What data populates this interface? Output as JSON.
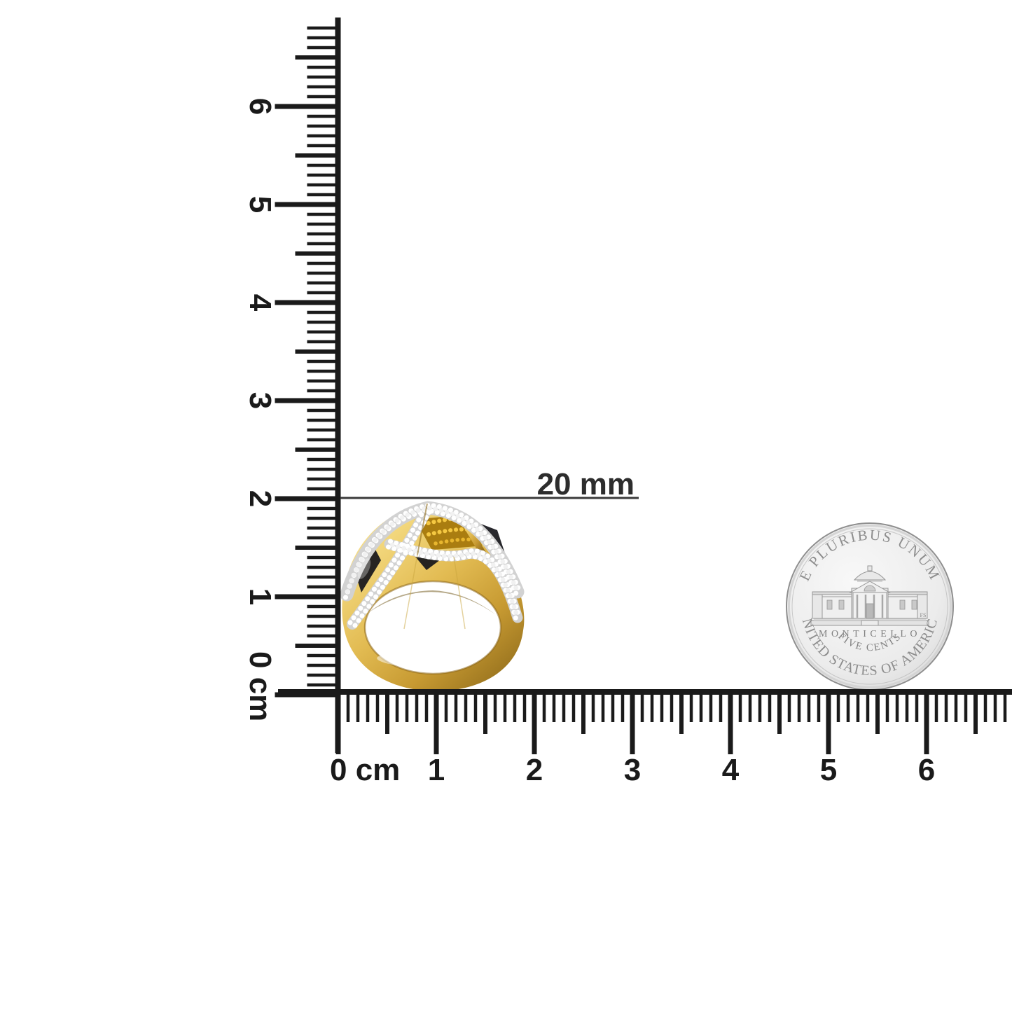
{
  "rulers": {
    "unit": "cm",
    "vertical_labels": [
      "0 cm",
      "1",
      "2",
      "3",
      "4",
      "5",
      "6"
    ],
    "horizontal_labels": [
      "0 cm",
      "1",
      "2",
      "3",
      "4",
      "5",
      "6"
    ],
    "color": "#1a1a1a"
  },
  "measurement": {
    "label": "20 mm",
    "color": "#2d2d2d"
  },
  "ring": {
    "band_color": "#d9b44a",
    "band_color_dark": "#95701d",
    "band_color_light": "#fcf0bb",
    "pave_base_color": "#d2d2d2",
    "pave_dot_color": "#ffffff",
    "yellow_diamond_color": "#e0a818",
    "black_accent_color": "#17171c"
  },
  "coin": {
    "top_legend": "E PLURIBUS UNUM",
    "building_label": "MONTICELLO",
    "denomination": "FIVE CENTS",
    "bottom_legend": "UNITED STATES OF AMERICA",
    "designer_initials": "FS",
    "face_color": "#efefef",
    "text_color": "#8d8d8d"
  }
}
